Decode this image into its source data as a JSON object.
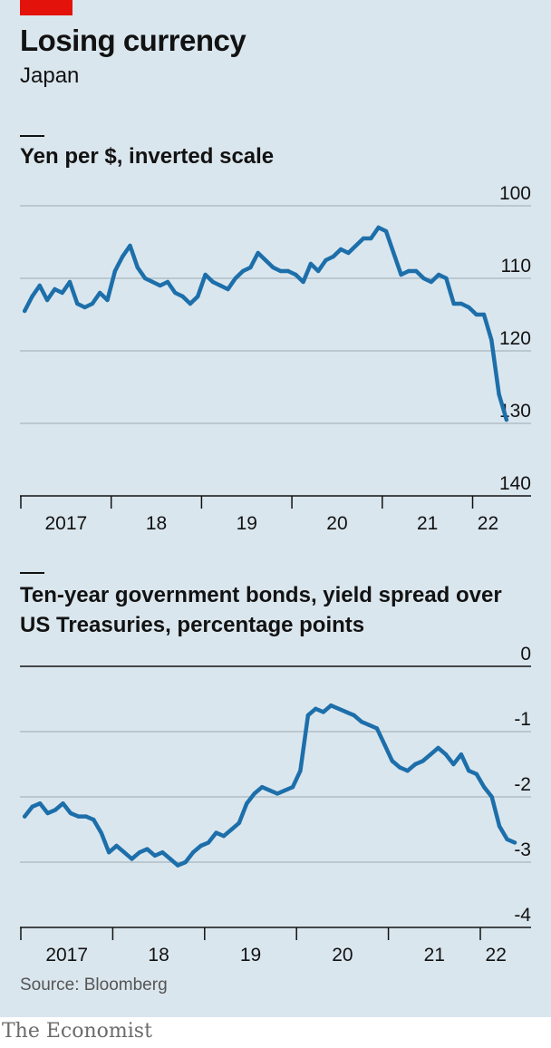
{
  "header": {
    "title": "Losing currency",
    "subtitle": "Japan"
  },
  "footer": {
    "source": "Source: Bloomberg",
    "brand": "The Economist"
  },
  "colors": {
    "background": "#dae6ee",
    "line": "#1d6faa",
    "accent": "#e3120b",
    "grid": "#a9b6bf"
  },
  "chart_data": [
    {
      "type": "line",
      "title": "Yen per $, inverted scale",
      "inverted_y": true,
      "ylim": [
        100,
        140
      ],
      "yticks": [
        100,
        110,
        120,
        130,
        140
      ],
      "x_tick_labels": [
        {
          "label": "2017",
          "year": 2017
        },
        {
          "label": "18",
          "year": 2018
        },
        {
          "label": "19",
          "year": 2019
        },
        {
          "label": "20",
          "year": 2020
        },
        {
          "label": "21",
          "year": 2021
        },
        {
          "label": "22",
          "year": 2022
        }
      ],
      "series": [
        {
          "x": [
            "2017-01",
            "2017-02",
            "2017-03",
            "2017-04",
            "2017-05",
            "2017-06",
            "2017-07",
            "2017-08",
            "2017-09",
            "2017-10",
            "2017-11",
            "2017-12",
            "2018-01",
            "2018-02",
            "2018-03",
            "2018-04",
            "2018-05",
            "2018-06",
            "2018-07",
            "2018-08",
            "2018-09",
            "2018-10",
            "2018-11",
            "2018-12",
            "2019-01",
            "2019-02",
            "2019-03",
            "2019-04",
            "2019-05",
            "2019-06",
            "2019-07",
            "2019-08",
            "2019-09",
            "2019-10",
            "2019-11",
            "2019-12",
            "2020-01",
            "2020-02",
            "2020-03",
            "2020-04",
            "2020-05",
            "2020-06",
            "2020-07",
            "2020-08",
            "2020-09",
            "2020-10",
            "2020-11",
            "2020-12",
            "2021-01",
            "2021-02",
            "2021-03",
            "2021-04",
            "2021-05",
            "2021-06",
            "2021-07",
            "2021-08",
            "2021-09",
            "2021-10",
            "2021-11",
            "2021-12",
            "2022-01",
            "2022-02",
            "2022-03",
            "2022-04",
            "2022-05"
          ],
          "values": [
            114.5,
            112.5,
            111.0,
            113.0,
            111.5,
            112.0,
            110.5,
            113.5,
            114.0,
            113.5,
            112.0,
            113.0,
            109.0,
            107.0,
            105.5,
            108.5,
            110.0,
            110.5,
            111.0,
            110.5,
            112.0,
            112.5,
            113.5,
            112.5,
            109.5,
            110.5,
            111.0,
            111.5,
            110.0,
            109.0,
            108.5,
            106.5,
            107.5,
            108.5,
            109.0,
            109.0,
            109.5,
            110.5,
            108.0,
            109.0,
            107.5,
            107.0,
            106.0,
            106.5,
            105.5,
            104.5,
            104.5,
            103.0,
            103.5,
            106.5,
            109.5,
            109.0,
            109.0,
            110.0,
            110.5,
            109.5,
            110.0,
            113.5,
            113.5,
            114.0,
            115.0,
            115.0,
            118.5,
            126.0,
            129.5
          ]
        }
      ]
    },
    {
      "type": "line",
      "title": "Ten-year government bonds, yield spread over US Treasuries, percentage points",
      "ylim": [
        -4,
        0
      ],
      "yticks": [
        0,
        -1,
        -2,
        -3,
        -4
      ],
      "x_tick_labels": [
        {
          "label": "2017",
          "year": 2017
        },
        {
          "label": "18",
          "year": 2018
        },
        {
          "label": "19",
          "year": 2019
        },
        {
          "label": "20",
          "year": 2020
        },
        {
          "label": "21",
          "year": 2021
        },
        {
          "label": "22",
          "year": 2022
        }
      ],
      "series": [
        {
          "x": [
            "2017-01",
            "2017-02",
            "2017-03",
            "2017-04",
            "2017-05",
            "2017-06",
            "2017-07",
            "2017-08",
            "2017-09",
            "2017-10",
            "2017-11",
            "2017-12",
            "2018-01",
            "2018-02",
            "2018-03",
            "2018-04",
            "2018-05",
            "2018-06",
            "2018-07",
            "2018-08",
            "2018-09",
            "2018-10",
            "2018-11",
            "2018-12",
            "2019-01",
            "2019-02",
            "2019-03",
            "2019-04",
            "2019-05",
            "2019-06",
            "2019-07",
            "2019-08",
            "2019-09",
            "2019-10",
            "2019-11",
            "2019-12",
            "2020-01",
            "2020-02",
            "2020-03",
            "2020-04",
            "2020-05",
            "2020-06",
            "2020-07",
            "2020-08",
            "2020-09",
            "2020-10",
            "2020-11",
            "2020-12",
            "2021-01",
            "2021-02",
            "2021-03",
            "2021-04",
            "2021-05",
            "2021-06",
            "2021-07",
            "2021-08",
            "2021-09",
            "2021-10",
            "2021-11",
            "2021-12",
            "2022-01",
            "2022-02",
            "2022-03",
            "2022-04",
            "2022-05"
          ],
          "values": [
            -2.3,
            -2.15,
            -2.1,
            -2.25,
            -2.2,
            -2.1,
            -2.25,
            -2.3,
            -2.3,
            -2.35,
            -2.55,
            -2.85,
            -2.75,
            -2.85,
            -2.95,
            -2.85,
            -2.8,
            -2.9,
            -2.85,
            -2.95,
            -3.05,
            -3.0,
            -2.85,
            -2.75,
            -2.7,
            -2.55,
            -2.6,
            -2.5,
            -2.4,
            -2.1,
            -1.95,
            -1.85,
            -1.9,
            -1.95,
            -1.9,
            -1.85,
            -1.6,
            -0.75,
            -0.65,
            -0.7,
            -0.6,
            -0.65,
            -0.7,
            -0.75,
            -0.85,
            -0.9,
            -0.95,
            -1.2,
            -1.45,
            -1.55,
            -1.6,
            -1.5,
            -1.45,
            -1.35,
            -1.25,
            -1.35,
            -1.5,
            -1.35,
            -1.6,
            -1.65,
            -1.85,
            -2.0,
            -2.45,
            -2.65,
            -2.7
          ]
        }
      ]
    }
  ]
}
